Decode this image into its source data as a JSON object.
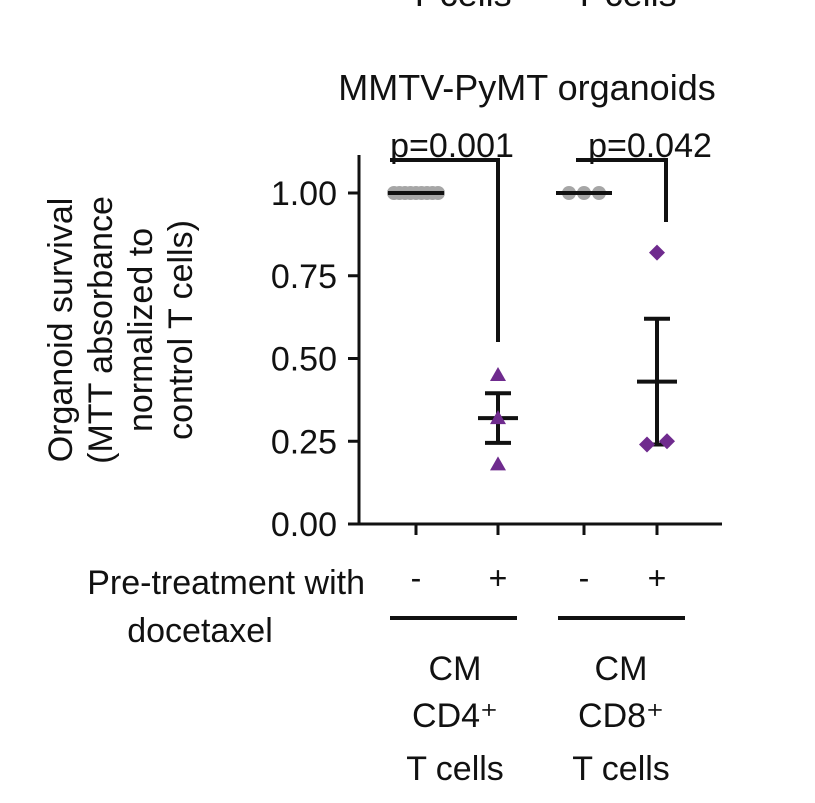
{
  "chart_data": {
    "type": "scatter",
    "top_cropped_labels": [
      "T cells",
      "T cells"
    ],
    "title": "MMTV-PyMT organoids",
    "ylabel_lines": [
      "Organoid survival",
      "(MTT absorbance",
      "normalized to",
      "control T cells)"
    ],
    "ylim": [
      0,
      1.1
    ],
    "yticks": [
      "0.00",
      "0.25",
      "0.50",
      "0.75",
      "1.00"
    ],
    "x_row_label_lines": [
      "Pre-treatment with",
      "docetaxel"
    ],
    "x_conditions": [
      "-",
      "+",
      "-",
      "+"
    ],
    "groups": [
      {
        "label_lines": [
          "CM",
          "CD4⁺",
          "T cells"
        ],
        "p_value": "p=0.001"
      },
      {
        "label_lines": [
          "CM",
          "CD8⁺",
          "T cells"
        ],
        "p_value": "p=0.042"
      }
    ],
    "series": [
      {
        "group": 0,
        "treated": false,
        "marker": "circle",
        "color": "#a6a6a6",
        "points": [
          1.0,
          1.0,
          1.0,
          1.0,
          1.0,
          1.0,
          1.0,
          1.0,
          1.0
        ],
        "mean": 1.0
      },
      {
        "group": 0,
        "treated": true,
        "marker": "triangle",
        "color": "#6f2b8e",
        "points": [
          0.45,
          0.32,
          0.18
        ],
        "mean": 0.32,
        "sem": 0.075
      },
      {
        "group": 1,
        "treated": false,
        "marker": "circle",
        "color": "#a6a6a6",
        "points": [
          1.0,
          1.0,
          1.0
        ],
        "mean": 1.0
      },
      {
        "group": 1,
        "treated": true,
        "marker": "diamond",
        "color": "#6f2b8e",
        "points": [
          0.82,
          0.25,
          0.24
        ],
        "mean": 0.43,
        "sem": 0.19
      }
    ]
  }
}
